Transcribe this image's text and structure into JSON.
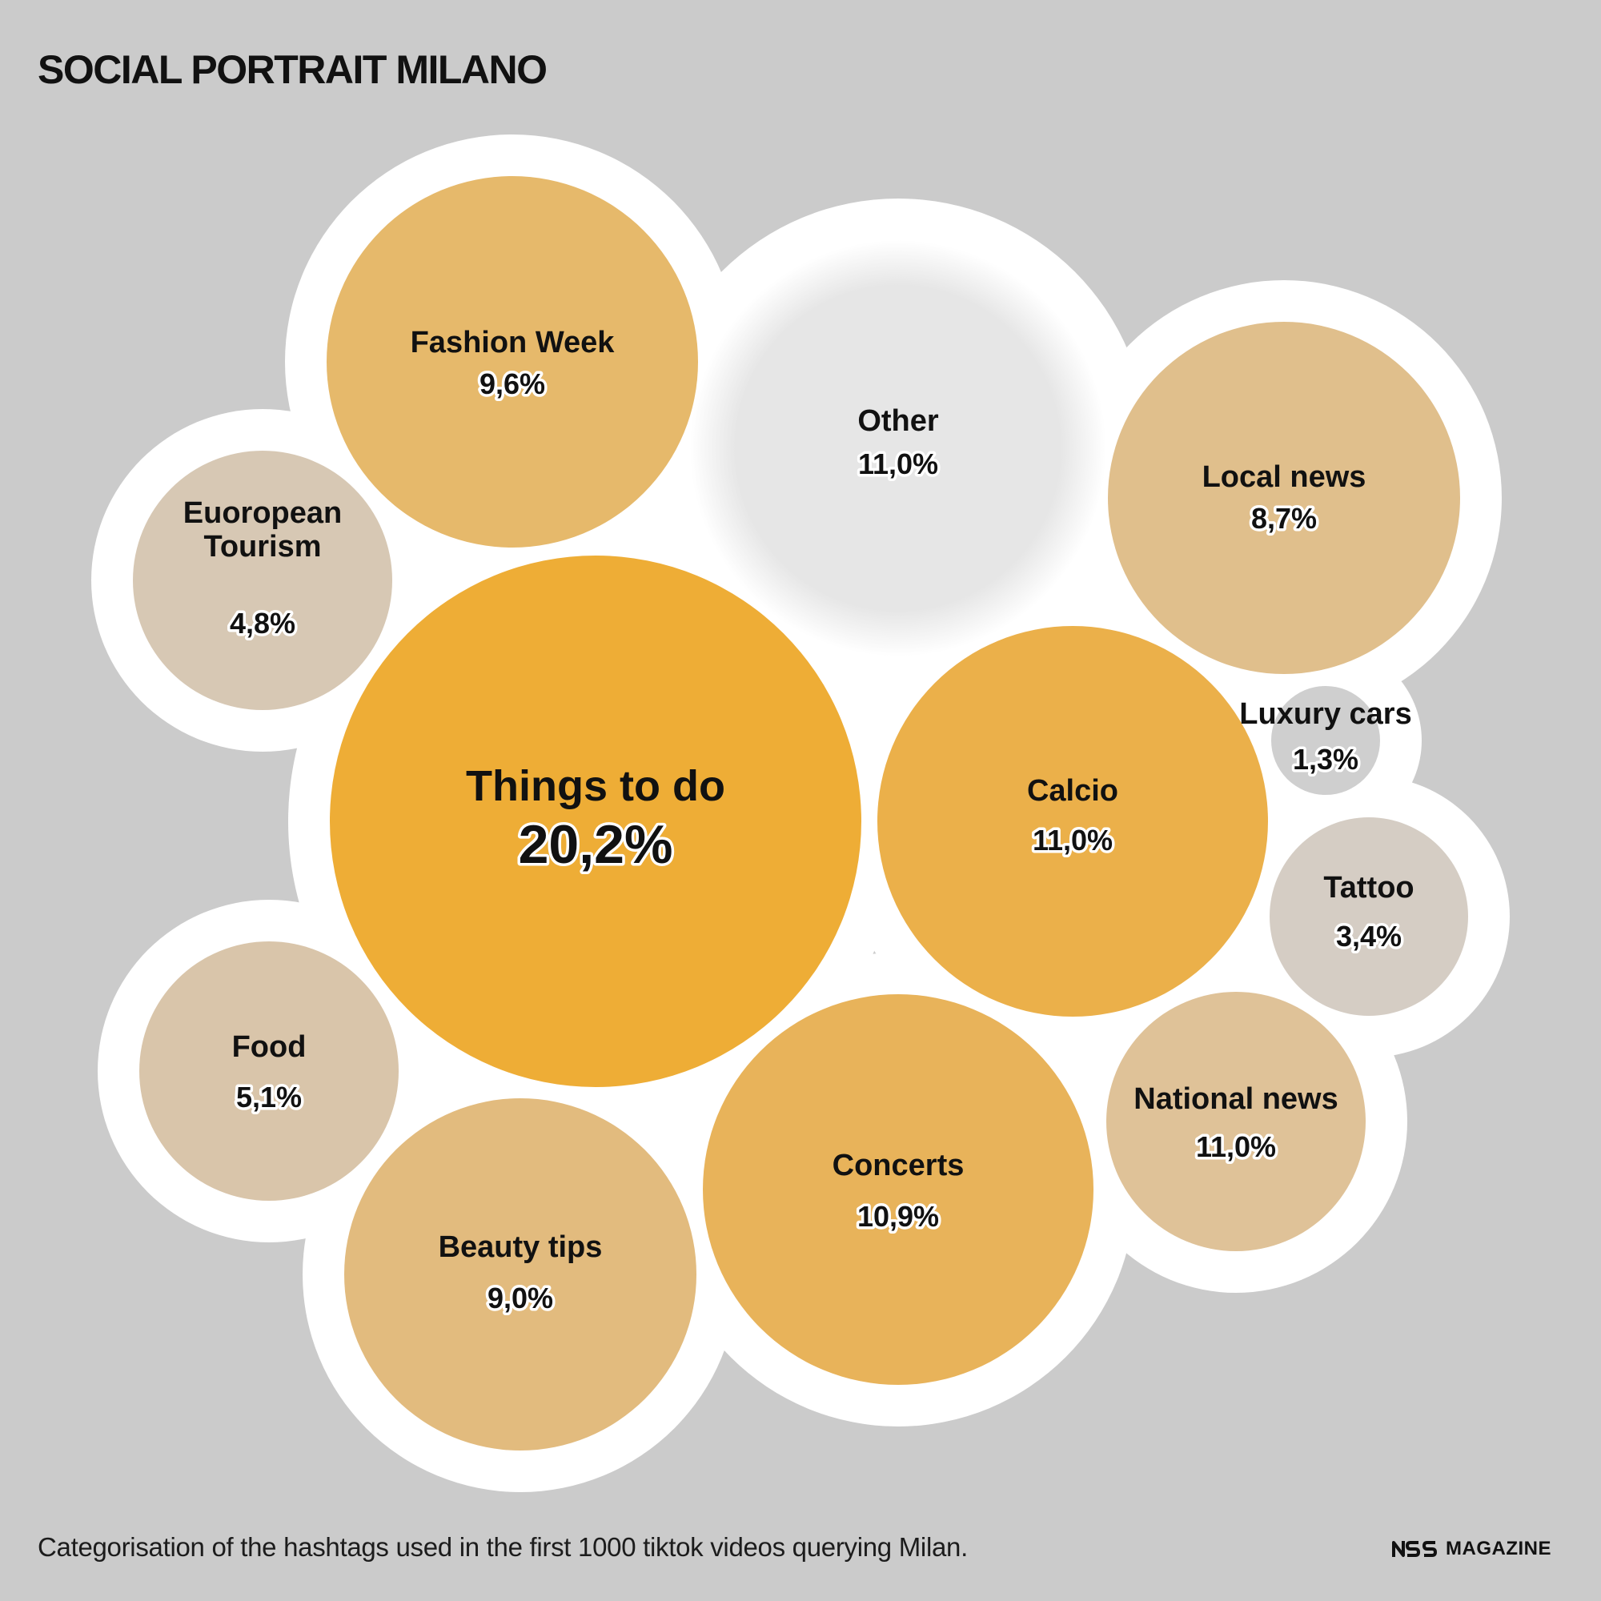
{
  "title": "SOCIAL PORTRAIT MILANO",
  "subtitle": "Categorisation of the hashtags used in the first 1000 tiktok videos querying Milan.",
  "brand": {
    "logo_icon": "nss-logo-icon",
    "text": "MAGAZINE"
  },
  "chart_data": {
    "type": "bubble",
    "title": "SOCIAL PORTRAIT MILANO",
    "unit": "%",
    "series": [
      {
        "name": "Things to do",
        "value": 20.2,
        "label": "20,2%",
        "color": "#eead36"
      },
      {
        "name": "Other",
        "value": 11.0,
        "label": "11,0%",
        "color": "#e6e6e6"
      },
      {
        "name": "Calcio",
        "value": 11.0,
        "label": "11,0%",
        "color": "#ebb04a"
      },
      {
        "name": "National news",
        "value": 11.0,
        "label": "11,0%",
        "color": "#dfc298"
      },
      {
        "name": "Concerts",
        "value": 10.9,
        "label": "10,9%",
        "color": "#e8b35a"
      },
      {
        "name": "Fashion Week",
        "value": 9.6,
        "label": "9,6%",
        "color": "#e6b96b"
      },
      {
        "name": "Beauty tips",
        "value": 9.0,
        "label": "9,0%",
        "color": "#e2bb7e"
      },
      {
        "name": "Local news",
        "value": 8.7,
        "label": "8,7%",
        "color": "#e0bf8c"
      },
      {
        "name": "Food",
        "value": 5.1,
        "label": "5,1%",
        "color": "#d9c5aa"
      },
      {
        "name": "Euoropean\nTourism",
        "value": 4.8,
        "label": "4,8%",
        "color": "#d7c8b4"
      },
      {
        "name": "Tattoo",
        "value": 3.4,
        "label": "3,4%",
        "color": "#d5cdc4"
      },
      {
        "name": "Luxury cars",
        "value": 1.3,
        "label": "1,3%",
        "color": "#cfcfcf"
      }
    ]
  }
}
